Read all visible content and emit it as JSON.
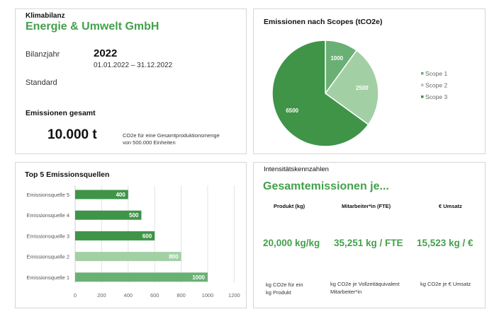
{
  "summary": {
    "label": "Klimabilanz",
    "company": "Energie & Umwelt GmbH",
    "year_label": "Bilanzjahr",
    "year": "2022",
    "period": "01.01.2022 – 31.12.2022",
    "standard_label": "Standard",
    "total_label": "Emissionen gesamt",
    "total_value": "10.000 t",
    "total_note_1": "CO2e für eine Gesamtproduktionsmenge",
    "total_note_2": "von 500.000 Einheiten"
  },
  "colors": {
    "accent": "#44a04c",
    "scope1": "#6ab074",
    "scope2": "#a3cfa5",
    "scope3": "#3f9448"
  },
  "chart_data": [
    {
      "type": "pie",
      "title": "Emissionen nach Scopes (tCO2e)",
      "categories": [
        "Scope 1",
        "Scope 2",
        "Scope 3"
      ],
      "values": [
        1000,
        2500,
        6500
      ],
      "colors": [
        "#6ab074",
        "#a3cfa5",
        "#3f9448"
      ],
      "legend": "right"
    },
    {
      "type": "bar",
      "orientation": "horizontal",
      "title": "Top 5 Emissionsquellen",
      "categories": [
        "Emissionsquelle 5",
        "Emissionsquelle 4",
        "Emissionsquelle 3",
        "Emissionsquelle 2",
        "Emissionsquelle 1"
      ],
      "values": [
        400,
        500,
        600,
        800,
        1000
      ],
      "colors": [
        "#3f9448",
        "#3f9448",
        "#3f9448",
        "#a3cfa5",
        "#6ab074"
      ],
      "xlim": [
        0,
        1200
      ],
      "xticks": [
        0,
        200,
        400,
        600,
        800,
        1000,
        1200
      ],
      "grid": true
    }
  ],
  "intensity": {
    "label": "Intensitätskennzahlen",
    "heading": "Gesamtemissionen je...",
    "columns": [
      {
        "header": "Produkt (kg)",
        "value": "20,000 kg/kg",
        "note_1": "kg CO2e für ein",
        "note_2": "kg Produkt"
      },
      {
        "header": "Mitarbeiter*in (FTE)",
        "value": "35,251 kg / FTE",
        "note_1": "kg CO2e je Vollzeitäquivalent",
        "note_2": "Mitarbeiter*in"
      },
      {
        "header": "€ Umsatz",
        "value": "15,523 kg / €",
        "note_1": "kg CO2e je € Umsatz",
        "note_2": ""
      }
    ]
  }
}
